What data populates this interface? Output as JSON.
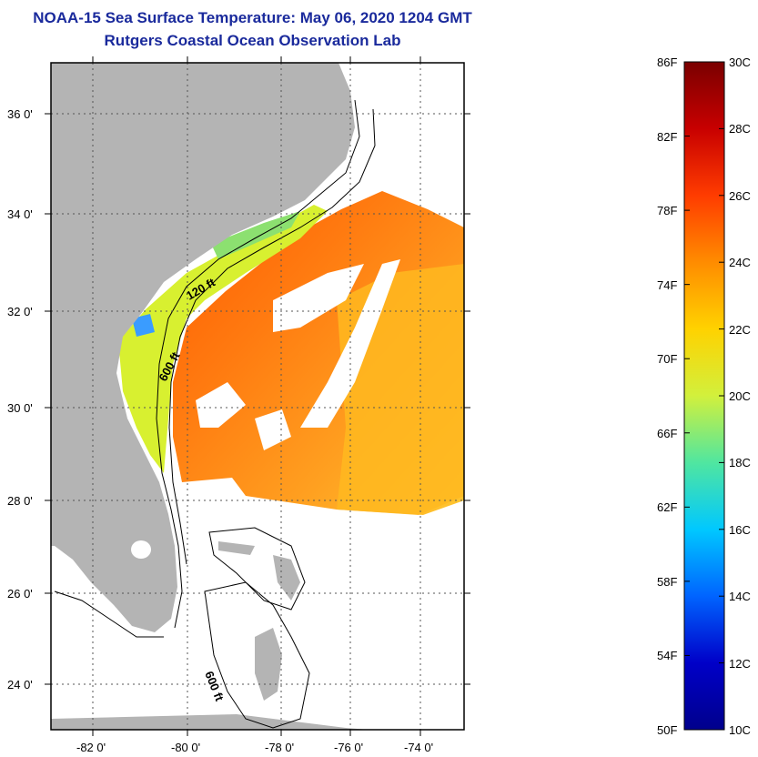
{
  "title": "NOAA-15 Sea Surface Temperature:  May 06, 2020 1204 GMT",
  "subtitle": "Rutgers Coastal Ocean Observation Lab",
  "map": {
    "lon_labels": [
      "-82 0'",
      "-80 0'",
      "-78 0'",
      "-76 0'",
      "-74 0'"
    ],
    "lat_labels": [
      "36 0'",
      "34 0'",
      "32 0'",
      "30 0'",
      "28 0'",
      "26 0'",
      "24 0'"
    ],
    "contour_labels": [
      "120 ft",
      "600 ft",
      "600 ft"
    ],
    "land_color": "#b4b4b4"
  },
  "colorbar": {
    "fahrenheit_labels": [
      "86F",
      "82F",
      "78F",
      "74F",
      "70F",
      "66F",
      "62F",
      "58F",
      "54F",
      "50F"
    ],
    "celsius_labels": [
      "30C",
      "28C",
      "26C",
      "24C",
      "22C",
      "20C",
      "18C",
      "16C",
      "14C",
      "12C",
      "10C"
    ],
    "colors": [
      "#7a0000",
      "#c80000",
      "#ff3c00",
      "#ff8c00",
      "#ffd200",
      "#d2f03c",
      "#50e6a0",
      "#00c8ff",
      "#0064ff",
      "#0000c8",
      "#00008c"
    ]
  }
}
